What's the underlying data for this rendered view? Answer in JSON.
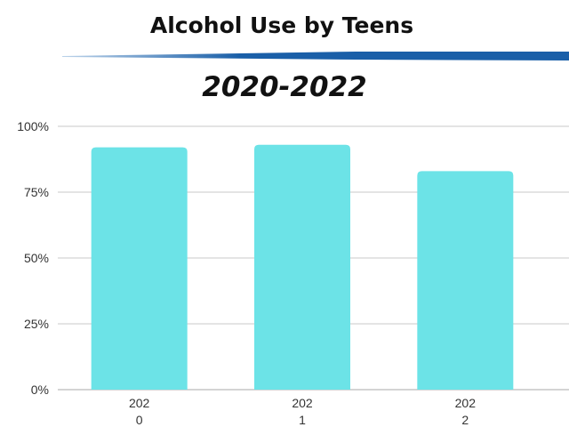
{
  "chart_data": {
    "type": "bar",
    "title": "Alcohol Use by Teens",
    "subtitle": "2020-2022",
    "categories": [
      "2020",
      "2021",
      "2022"
    ],
    "category_label_lines": [
      [
        "202",
        "0"
      ],
      [
        "202",
        "1"
      ],
      [
        "202",
        "2"
      ]
    ],
    "values": [
      92,
      93,
      83
    ],
    "ylim": [
      0,
      100
    ],
    "yticks": [
      0,
      25,
      50,
      75,
      100
    ],
    "ytick_labels": [
      "0%",
      "25%",
      "50%",
      "75%",
      "100%"
    ],
    "xlabel": "",
    "ylabel": "",
    "grid": true,
    "colors": {
      "bar": "#6ce3e7",
      "banner": "#1a5fa8",
      "grid": "#c8c8c8"
    }
  }
}
